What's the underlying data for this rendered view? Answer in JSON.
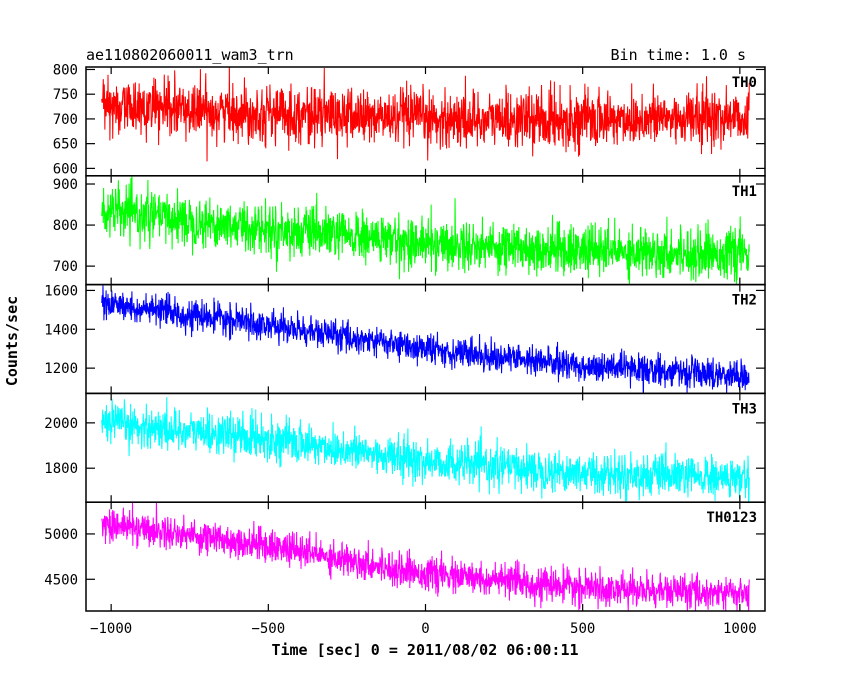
{
  "chart_data": {
    "type": "line",
    "title": "ae110802060011_wam3_trn",
    "bin_label": "Bin time: 1.0 s",
    "xlabel": "Time [sec] 0 = 2011/08/02 06:00:11",
    "ylabel": "Counts/sec",
    "xlim": [
      -1080,
      1080
    ],
    "x_ticks": [
      -1000,
      -500,
      0,
      500,
      1000
    ],
    "x_tick_labels": [
      "−1000",
      "−500",
      "0",
      "500",
      "1000"
    ],
    "x_data_range": [
      -1030,
      1030
    ],
    "grid": false,
    "panels": [
      {
        "name": "TH0",
        "color": "#ff0000",
        "ylim": [
          585,
          805
        ],
        "yticks": [
          600,
          650,
          700,
          750,
          800
        ],
        "trend": [
          [
            -1030,
            725
          ],
          [
            -500,
            712
          ],
          [
            0,
            700
          ],
          [
            500,
            698
          ],
          [
            1030,
            705
          ]
        ],
        "noise": 28
      },
      {
        "name": "TH1",
        "color": "#00ff00",
        "ylim": [
          655,
          920
        ],
        "yticks": [
          700,
          800,
          900
        ],
        "trend": [
          [
            -1030,
            835
          ],
          [
            -500,
            790
          ],
          [
            0,
            755
          ],
          [
            500,
            738
          ],
          [
            1030,
            730
          ]
        ],
        "noise": 30
      },
      {
        "name": "TH2",
        "color": "#0000ff",
        "ylim": [
          1070,
          1630
        ],
        "yticks": [
          1200,
          1400,
          1600
        ],
        "trend": [
          [
            -1030,
            1530
          ],
          [
            -500,
            1420
          ],
          [
            0,
            1300
          ],
          [
            500,
            1210
          ],
          [
            1030,
            1160
          ]
        ],
        "noise": 38
      },
      {
        "name": "TH3",
        "color": "#00ffff",
        "ylim": [
          1650,
          2130
        ],
        "yticks": [
          1800,
          2000
        ],
        "trend": [
          [
            -1030,
            2000
          ],
          [
            -500,
            1930
          ],
          [
            0,
            1830
          ],
          [
            500,
            1780
          ],
          [
            1030,
            1750
          ]
        ],
        "noise": 45
      },
      {
        "name": "TH0123",
        "color": "#ff00ff",
        "ylim": [
          4150,
          5350
        ],
        "yticks": [
          4500,
          5000
        ],
        "trend": [
          [
            -1030,
            5120
          ],
          [
            -500,
            4870
          ],
          [
            0,
            4560
          ],
          [
            500,
            4400
          ],
          [
            1030,
            4340
          ]
        ],
        "noise": 90
      }
    ]
  }
}
